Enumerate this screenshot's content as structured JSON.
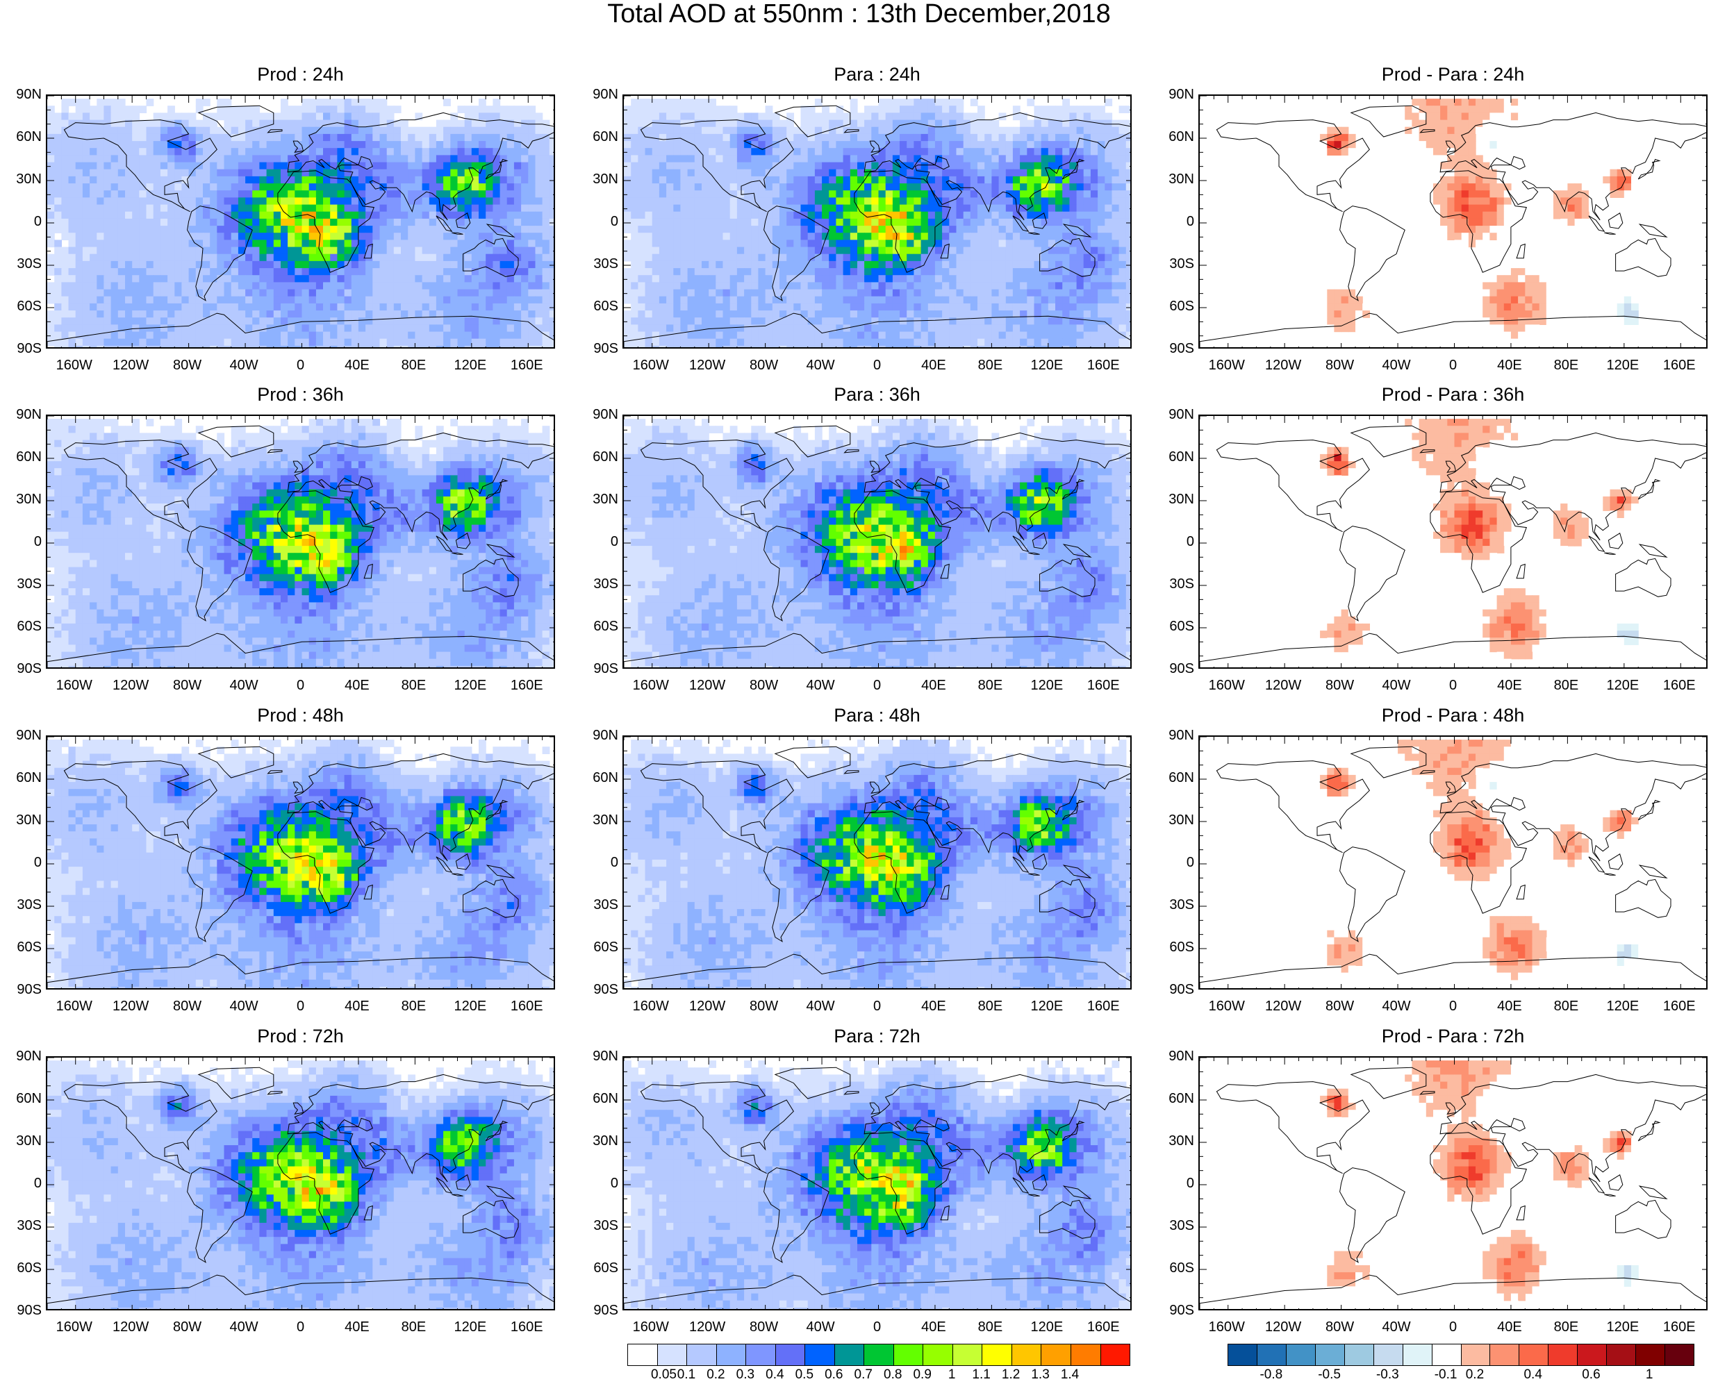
{
  "title": "Total AOD at 550nm : 13th December,2018",
  "panels": [
    {
      "id": "prod-24h",
      "title": "Prod : 24h",
      "type": "aod",
      "row": 0,
      "col": 0
    },
    {
      "id": "para-24h",
      "title": "Para : 24h",
      "type": "aod",
      "row": 0,
      "col": 1
    },
    {
      "id": "diff-24h",
      "title": "Prod - Para : 24h",
      "type": "diff",
      "row": 0,
      "col": 2
    },
    {
      "id": "prod-36h",
      "title": "Prod : 36h",
      "type": "aod",
      "row": 1,
      "col": 0
    },
    {
      "id": "para-36h",
      "title": "Para : 36h",
      "type": "aod",
      "row": 1,
      "col": 1
    },
    {
      "id": "diff-36h",
      "title": "Prod - Para : 36h",
      "type": "diff",
      "row": 1,
      "col": 2
    },
    {
      "id": "prod-48h",
      "title": "Prod : 48h",
      "type": "aod",
      "row": 2,
      "col": 0
    },
    {
      "id": "para-48h",
      "title": "Para : 48h",
      "type": "aod",
      "row": 2,
      "col": 1
    },
    {
      "id": "diff-48h",
      "title": "Prod - Para : 48h",
      "type": "diff",
      "row": 2,
      "col": 2
    },
    {
      "id": "prod-72h",
      "title": "Prod : 72h",
      "type": "aod",
      "row": 3,
      "col": 0
    },
    {
      "id": "para-72h",
      "title": "Para : 72h",
      "type": "aod",
      "row": 3,
      "col": 1
    },
    {
      "id": "diff-72h",
      "title": "Prod - Para : 72h",
      "type": "diff",
      "row": 3,
      "col": 2
    }
  ],
  "lat_labels": [
    "90N",
    "60N",
    "30N",
    "0",
    "30S",
    "60S",
    "90S"
  ],
  "lon_labels": [
    "160W",
    "120W",
    "80W",
    "40W",
    "0",
    "40E",
    "80E",
    "120E",
    "160E"
  ],
  "aod_colorbar": {
    "labels": [
      "0.05",
      "0.1",
      "0.2",
      "0.3",
      "0.4",
      "0.5",
      "0.6",
      "0.7",
      "0.8",
      "0.9",
      "1",
      "1.1",
      "1.2",
      "1.3",
      "1.4"
    ],
    "colors": [
      "#ffffff",
      "#d6e2ff",
      "#b5c9ff",
      "#8eb2ff",
      "#7f96ff",
      "#6370f8",
      "#0063ff",
      "#009696",
      "#00c633",
      "#63ff00",
      "#96ff00",
      "#c6ff33",
      "#ffff00",
      "#ffc600",
      "#ffa000",
      "#ff7c00",
      "#ff1900"
    ]
  },
  "diff_colorbar": {
    "labels": [
      "-0.8",
      "-0.5",
      "-0.3",
      "-0.1",
      "0.2",
      "0.4",
      "0.6",
      "1"
    ],
    "colors": [
      "#05509a",
      "#2171b5",
      "#4292c6",
      "#6baed6",
      "#9ecae1",
      "#c6dbef",
      "#e0f3f8",
      "#ffffff",
      "#fcbba1",
      "#fc9272",
      "#fb6a4a",
      "#ef3b2c",
      "#cb181d",
      "#a50f15",
      "#800000",
      "#67000d"
    ]
  }
}
